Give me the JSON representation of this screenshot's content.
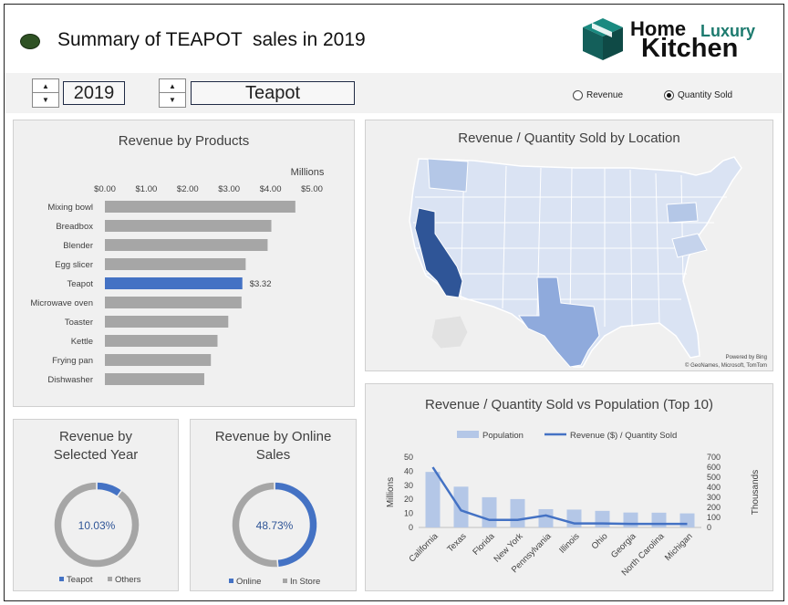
{
  "header": {
    "title": "Summary of TEAPOT  sales in 2019",
    "logo": {
      "home": "Home",
      "luxury": "Luxury",
      "kitchen": "Kitchen"
    }
  },
  "controls": {
    "year_value": "2019",
    "product_value": "Teapot",
    "radio_revenue": "Revenue",
    "radio_quantity": "Quantity Sold",
    "selected_metric": "Quantity Sold"
  },
  "colors": {
    "highlight": "#4472c4",
    "gray_bar": "#a6a6a6",
    "panel_bg": "#f0f0f0",
    "pop_bar": "#b4c7e7",
    "map_dark": "#2f5597",
    "map_mid": "#8faadc",
    "map_light": "#dae3f3"
  },
  "panels": {
    "products_title": "Revenue by Products",
    "map_title": "Revenue / Quantity Sold by Location",
    "map_credit1": "Powered by Bing",
    "map_credit2": "© GeoNames, Microsoft, TomTom",
    "year_title_line1": "Revenue by",
    "year_title_line2": "Selected Year",
    "online_title_line1": "Revenue by Online",
    "online_title_line2": "Sales",
    "pop_title": "Revenue / Quantity Sold vs Population (Top 10)"
  },
  "chart_data": [
    {
      "type": "bar",
      "orientation": "horizontal",
      "title": "Revenue by Products",
      "unit_label": "Millions",
      "x_ticks": [
        "$0.00",
        "$1.00",
        "$2.00",
        "$3.00",
        "$4.00",
        "$5.00"
      ],
      "xlim": [
        0,
        5
      ],
      "categories": [
        "Mixing bowl",
        "Breadbox",
        "Blender",
        "Egg slicer",
        "Teapot",
        "Microwave oven",
        "Toaster",
        "Kettle",
        "Frying pan",
        "Dishwasher"
      ],
      "values": [
        4.6,
        4.02,
        3.93,
        3.4,
        3.32,
        3.3,
        2.98,
        2.72,
        2.56,
        2.4
      ],
      "highlight_category": "Teapot",
      "data_label": "$3.32"
    },
    {
      "type": "pie",
      "variant": "donut",
      "title": "Revenue by Selected Year",
      "center_label": "10.03%",
      "slices": [
        {
          "name": "Teapot",
          "value": 10.03,
          "color": "#4472c4"
        },
        {
          "name": "Others",
          "value": 89.97,
          "color": "#a6a6a6"
        }
      ]
    },
    {
      "type": "pie",
      "variant": "donut",
      "title": "Revenue by Online Sales",
      "center_label": "48.73%",
      "slices": [
        {
          "name": "Online",
          "value": 48.73,
          "color": "#4472c4"
        },
        {
          "name": "In Store",
          "value": 51.27,
          "color": "#a6a6a6"
        }
      ]
    },
    {
      "type": "bar",
      "combo": "bar+line",
      "title": "Revenue / Quantity Sold vs Population (Top 10)",
      "categories": [
        "California",
        "Texas",
        "Florida",
        "New York",
        "Pennsylvania",
        "Illinois",
        "Ohio",
        "Georgia",
        "North Carolina",
        "Michigan"
      ],
      "series": [
        {
          "name": "Population",
          "axis": "left",
          "kind": "bar",
          "values": [
            39.5,
            29.0,
            21.5,
            20.2,
            13.0,
            12.7,
            11.8,
            10.6,
            10.5,
            10.0
          ]
        },
        {
          "name": "Revenue ($) / Quantity Sold",
          "axis": "right",
          "kind": "line",
          "values": [
            600,
            170,
            75,
            75,
            120,
            40,
            40,
            35,
            35,
            35
          ]
        }
      ],
      "left_axis_label": "Millions",
      "left_ticks": [
        "0",
        "10",
        "20",
        "30",
        "40",
        "50"
      ],
      "ylim_left": [
        0,
        50
      ],
      "right_axis_label": "Thousands",
      "right_ticks": [
        "0",
        "100",
        "200",
        "300",
        "400",
        "500",
        "600",
        "700"
      ],
      "ylim_right": [
        0,
        700
      ]
    }
  ]
}
